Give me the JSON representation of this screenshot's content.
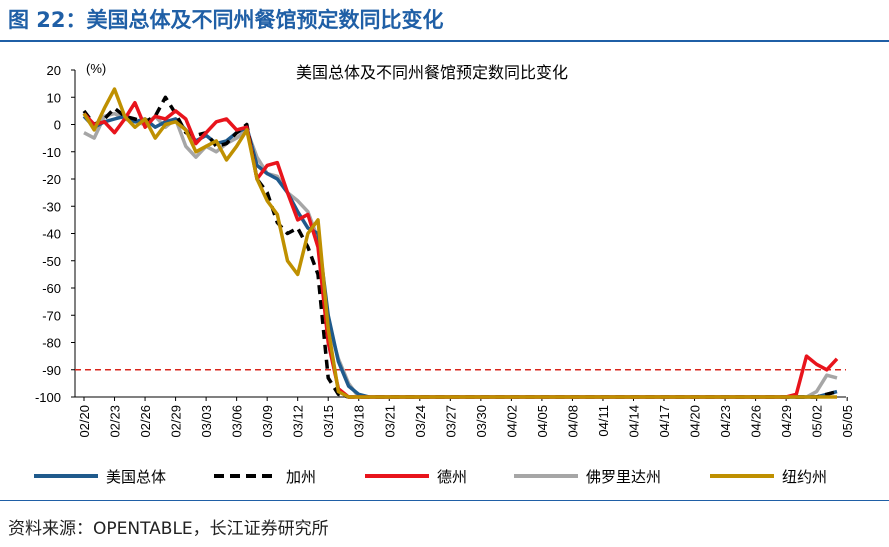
{
  "page_title": "图 22：美国总体及不同州餐馆预定数同比变化",
  "source": "资料来源：OPENTABLE，长江证券研究所",
  "chart_data": {
    "type": "line",
    "title": "美国总体及不同州餐馆预定数同比变化",
    "unit_label": "(%)",
    "xlabel": "",
    "ylabel": "",
    "ylim": [
      -100,
      20
    ],
    "yticks": [
      20,
      10,
      0,
      -10,
      -20,
      -30,
      -40,
      -50,
      -60,
      -70,
      -80,
      -90,
      -100
    ],
    "reference_line": {
      "y": -90,
      "color": "#d9261c",
      "style": "dashed"
    },
    "x_count": 75,
    "x_tick_labels": [
      "02/20",
      "02/23",
      "02/26",
      "02/29",
      "03/03",
      "03/06",
      "03/09",
      "03/12",
      "03/15",
      "03/18",
      "03/21",
      "03/24",
      "03/27",
      "03/30",
      "04/02",
      "04/05",
      "04/08",
      "04/11",
      "04/14",
      "04/17",
      "04/20",
      "04/23",
      "04/26",
      "04/29",
      "05/02",
      "05/05"
    ],
    "series": [
      {
        "name": "美国总体",
        "color": "#1f5a8c",
        "dash": "solid",
        "points": [
          [
            0,
            3
          ],
          [
            1,
            -1
          ],
          [
            2,
            1
          ],
          [
            3,
            2
          ],
          [
            4,
            3
          ],
          [
            5,
            1
          ],
          [
            6,
            2
          ],
          [
            7,
            -1
          ],
          [
            8,
            1
          ],
          [
            9,
            2
          ],
          [
            10,
            -2
          ],
          [
            11,
            -6
          ],
          [
            12,
            -4
          ],
          [
            13,
            -7
          ],
          [
            14,
            -6
          ],
          [
            15,
            -3
          ],
          [
            16,
            -1
          ],
          [
            17,
            -15
          ],
          [
            18,
            -18
          ],
          [
            19,
            -20
          ],
          [
            20,
            -25
          ],
          [
            21,
            -32
          ],
          [
            22,
            -38
          ],
          [
            23,
            -40
          ],
          [
            24,
            -70
          ],
          [
            25,
            -87
          ],
          [
            26,
            -96
          ],
          [
            27,
            -99
          ],
          [
            28,
            -100
          ],
          [
            72,
            -100
          ],
          [
            73,
            -99
          ],
          [
            74,
            -98
          ]
        ]
      },
      {
        "name": "加州",
        "color": "#000000",
        "dash": "dashed",
        "points": [
          [
            0,
            5
          ],
          [
            1,
            0
          ],
          [
            2,
            2
          ],
          [
            3,
            6
          ],
          [
            4,
            3
          ],
          [
            5,
            2
          ],
          [
            6,
            1
          ],
          [
            7,
            3
          ],
          [
            8,
            10
          ],
          [
            9,
            4
          ],
          [
            10,
            -3
          ],
          [
            11,
            -4
          ],
          [
            12,
            -3
          ],
          [
            13,
            -8
          ],
          [
            14,
            -7
          ],
          [
            15,
            -3
          ],
          [
            16,
            0
          ],
          [
            17,
            -20
          ],
          [
            18,
            -25
          ],
          [
            19,
            -36
          ],
          [
            20,
            -40
          ],
          [
            21,
            -38
          ],
          [
            22,
            -45
          ],
          [
            23,
            -55
          ],
          [
            24,
            -93
          ],
          [
            25,
            -99
          ],
          [
            26,
            -100
          ],
          [
            72,
            -100
          ],
          [
            73,
            -99
          ],
          [
            74,
            -98
          ]
        ]
      },
      {
        "name": "德州",
        "color": "#e8141c",
        "dash": "solid",
        "points": [
          [
            0,
            4
          ],
          [
            1,
            0
          ],
          [
            2,
            1
          ],
          [
            3,
            -3
          ],
          [
            4,
            2
          ],
          [
            5,
            8
          ],
          [
            6,
            -1
          ],
          [
            7,
            3
          ],
          [
            8,
            2
          ],
          [
            9,
            5
          ],
          [
            10,
            2
          ],
          [
            11,
            -7
          ],
          [
            12,
            -3
          ],
          [
            13,
            1
          ],
          [
            14,
            2
          ],
          [
            15,
            -2
          ],
          [
            16,
            -1
          ],
          [
            17,
            -20
          ],
          [
            18,
            -15
          ],
          [
            19,
            -14
          ],
          [
            20,
            -25
          ],
          [
            21,
            -35
          ],
          [
            22,
            -33
          ],
          [
            23,
            -45
          ],
          [
            24,
            -80
          ],
          [
            25,
            -97
          ],
          [
            26,
            -100
          ],
          [
            69,
            -100
          ],
          [
            70,
            -99
          ],
          [
            71,
            -85
          ],
          [
            72,
            -88
          ],
          [
            73,
            -90
          ],
          [
            74,
            -86
          ]
        ]
      },
      {
        "name": "佛罗里达州",
        "color": "#a6a6a6",
        "dash": "solid",
        "points": [
          [
            0,
            -3
          ],
          [
            1,
            -5
          ],
          [
            2,
            3
          ],
          [
            3,
            4
          ],
          [
            4,
            2
          ],
          [
            5,
            1
          ],
          [
            6,
            0
          ],
          [
            7,
            3
          ],
          [
            8,
            -1
          ],
          [
            9,
            2
          ],
          [
            10,
            -8
          ],
          [
            11,
            -12
          ],
          [
            12,
            -8
          ],
          [
            13,
            -10
          ],
          [
            14,
            -7
          ],
          [
            15,
            -5
          ],
          [
            16,
            -2
          ],
          [
            17,
            -12
          ],
          [
            18,
            -18
          ],
          [
            19,
            -19
          ],
          [
            20,
            -25
          ],
          [
            21,
            -28
          ],
          [
            22,
            -32
          ],
          [
            23,
            -42
          ],
          [
            24,
            -73
          ],
          [
            25,
            -86
          ],
          [
            26,
            -95
          ],
          [
            27,
            -100
          ],
          [
            71,
            -100
          ],
          [
            72,
            -98
          ],
          [
            73,
            -92
          ],
          [
            74,
            -93
          ]
        ]
      },
      {
        "name": "纽约州",
        "color": "#bf9000",
        "dash": "solid",
        "points": [
          [
            0,
            4
          ],
          [
            1,
            -2
          ],
          [
            2,
            6
          ],
          [
            3,
            13
          ],
          [
            4,
            3
          ],
          [
            5,
            -1
          ],
          [
            6,
            2
          ],
          [
            7,
            -5
          ],
          [
            8,
            0
          ],
          [
            9,
            1
          ],
          [
            10,
            -2
          ],
          [
            11,
            -10
          ],
          [
            12,
            -8
          ],
          [
            13,
            -6
          ],
          [
            14,
            -13
          ],
          [
            15,
            -8
          ],
          [
            16,
            -2
          ],
          [
            17,
            -20
          ],
          [
            18,
            -28
          ],
          [
            19,
            -33
          ],
          [
            20,
            -50
          ],
          [
            21,
            -55
          ],
          [
            22,
            -40
          ],
          [
            23,
            -35
          ],
          [
            24,
            -75
          ],
          [
            25,
            -98
          ],
          [
            26,
            -100
          ],
          [
            74,
            -100
          ]
        ]
      }
    ]
  }
}
